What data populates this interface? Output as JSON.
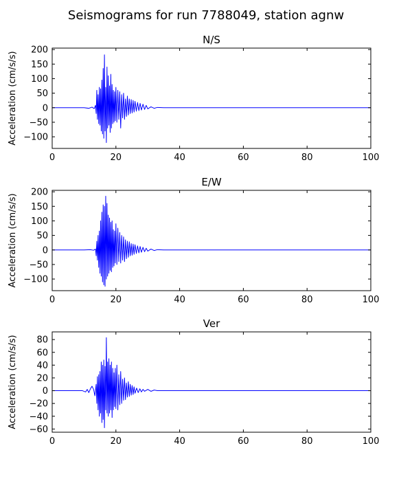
{
  "figure": {
    "title": "Seismograms for run 7788049, station agnw"
  },
  "chart_data": [
    {
      "type": "line",
      "title": "N/S",
      "xlabel": "",
      "ylabel": "Acceleration (cm/s/s)",
      "xlim": [
        0,
        100
      ],
      "ylim": [
        -140,
        205
      ],
      "xticks": [
        0,
        20,
        40,
        60,
        80,
        100
      ],
      "yticks": [
        -100,
        -50,
        0,
        50,
        100,
        150,
        200
      ],
      "grid": false,
      "color": "#0000ff",
      "series": [
        {
          "x": [
            0,
            10,
            11.5,
            12.5,
            13.2,
            13.6,
            13.8,
            14.0,
            14.2,
            14.4,
            14.6,
            14.8,
            15.0,
            15.2,
            15.4,
            15.6,
            15.8,
            16.0,
            16.2,
            16.4,
            16.6,
            16.8,
            17.0,
            17.2,
            17.4,
            17.6,
            17.8,
            18.0,
            18.2,
            18.4,
            18.6,
            18.8,
            19.0,
            19.2,
            19.4,
            19.6,
            19.8,
            20.0,
            20.3,
            20.6,
            20.9,
            21.2,
            21.5,
            21.8,
            22.1,
            22.4,
            22.7,
            23.0,
            23.3,
            23.6,
            23.9,
            24.2,
            24.5,
            24.8,
            25.1,
            25.4,
            25.7,
            26.0,
            26.4,
            26.8,
            27.2,
            27.6,
            28.0,
            28.5,
            29.0,
            29.5,
            30.0,
            31.0,
            32.0,
            33.0,
            35.0,
            100
          ],
          "y": [
            0,
            0,
            -2,
            2,
            -3,
            8,
            -20,
            60,
            -40,
            45,
            -55,
            70,
            -60,
            65,
            -80,
            95,
            -90,
            135,
            -105,
            182,
            -80,
            70,
            -120,
            140,
            -70,
            110,
            -60,
            75,
            -85,
            115,
            -70,
            80,
            -55,
            60,
            -50,
            55,
            -45,
            70,
            -50,
            60,
            -40,
            55,
            -70,
            45,
            -35,
            50,
            -40,
            30,
            -30,
            40,
            -25,
            30,
            -20,
            28,
            -18,
            25,
            -15,
            22,
            -12,
            18,
            -10,
            15,
            -8,
            12,
            -6,
            8,
            -4,
            3,
            -2,
            1,
            0,
            0
          ]
        }
      ]
    },
    {
      "type": "line",
      "title": "E/W",
      "xlabel": "",
      "ylabel": "Acceleration (cm/s/s)",
      "xlim": [
        0,
        100
      ],
      "ylim": [
        -140,
        205
      ],
      "xticks": [
        0,
        20,
        40,
        60,
        80,
        100
      ],
      "yticks": [
        -100,
        -50,
        0,
        50,
        100,
        150,
        200
      ],
      "grid": false,
      "color": "#0000ff",
      "series": [
        {
          "x": [
            0,
            10,
            12.0,
            13.0,
            13.6,
            13.8,
            14.0,
            14.2,
            14.4,
            14.6,
            14.8,
            15.0,
            15.2,
            15.4,
            15.6,
            15.8,
            16.0,
            16.2,
            16.4,
            16.6,
            16.8,
            17.0,
            17.2,
            17.4,
            17.6,
            17.8,
            18.0,
            18.2,
            18.4,
            18.6,
            18.8,
            19.0,
            19.2,
            19.4,
            19.6,
            19.8,
            20.0,
            20.3,
            20.6,
            20.9,
            21.2,
            21.5,
            21.8,
            22.1,
            22.4,
            22.7,
            23.0,
            23.3,
            23.6,
            23.9,
            24.2,
            24.5,
            24.8,
            25.1,
            25.4,
            25.7,
            26.0,
            26.4,
            26.8,
            27.2,
            27.6,
            28.0,
            28.5,
            29.0,
            29.5,
            30.0,
            31.0,
            32.0,
            33.0,
            35.0,
            100
          ],
          "y": [
            0,
            0,
            1,
            -1,
            3,
            -20,
            30,
            -35,
            50,
            -60,
            65,
            -80,
            100,
            -90,
            130,
            -110,
            155,
            -120,
            150,
            -125,
            185,
            -100,
            160,
            -90,
            120,
            -80,
            110,
            -70,
            95,
            -75,
            100,
            -60,
            70,
            -55,
            65,
            -45,
            90,
            -50,
            75,
            -40,
            60,
            -45,
            50,
            -35,
            45,
            -40,
            35,
            -30,
            30,
            -25,
            28,
            -20,
            22,
            -18,
            20,
            -15,
            18,
            -12,
            14,
            -10,
            12,
            -8,
            9,
            -6,
            6,
            -4,
            3,
            -2,
            1,
            0,
            0
          ]
        }
      ]
    },
    {
      "type": "line",
      "title": "Ver",
      "xlabel": "",
      "ylabel": "Acceleration (cm/s/s)",
      "xlim": [
        0,
        100
      ],
      "ylim": [
        -65,
        92
      ],
      "xticks": [
        0,
        20,
        40,
        60,
        80,
        100
      ],
      "yticks": [
        -60,
        -40,
        -20,
        0,
        20,
        40,
        60,
        80
      ],
      "grid": false,
      "color": "#0000ff",
      "series": [
        {
          "x": [
            0,
            9.5,
            10.5,
            11.0,
            11.5,
            12.0,
            12.5,
            13.0,
            13.4,
            13.8,
            14.0,
            14.2,
            14.4,
            14.6,
            14.8,
            15.0,
            15.2,
            15.4,
            15.6,
            15.8,
            16.0,
            16.2,
            16.4,
            16.6,
            16.8,
            17.0,
            17.2,
            17.4,
            17.6,
            17.8,
            18.0,
            18.2,
            18.4,
            18.6,
            18.8,
            19.0,
            19.2,
            19.4,
            19.6,
            19.8,
            20.0,
            20.3,
            20.6,
            20.9,
            21.2,
            21.5,
            21.8,
            22.1,
            22.4,
            22.7,
            23.0,
            23.3,
            23.6,
            23.9,
            24.2,
            24.5,
            24.8,
            25.1,
            25.4,
            25.7,
            26.0,
            26.5,
            27.0,
            27.5,
            28.0,
            28.5,
            29.0,
            30.0,
            31.0,
            32.0,
            33.0,
            35.0,
            100
          ],
          "y": [
            0,
            0,
            -2,
            2,
            -3,
            3,
            7,
            2,
            -8,
            10,
            -20,
            22,
            -30,
            25,
            -40,
            30,
            -35,
            45,
            -50,
            40,
            -45,
            48,
            -58,
            38,
            -30,
            83,
            -35,
            45,
            -40,
            50,
            -35,
            40,
            -30,
            45,
            -42,
            35,
            -30,
            28,
            -25,
            35,
            -28,
            40,
            -30,
            25,
            -22,
            30,
            -20,
            18,
            -15,
            20,
            -14,
            12,
            -10,
            14,
            -9,
            10,
            -7,
            8,
            -6,
            6,
            -4,
            4,
            -3,
            3,
            -2,
            2,
            -1,
            2,
            -1,
            1,
            0,
            0,
            0
          ]
        }
      ]
    }
  ]
}
